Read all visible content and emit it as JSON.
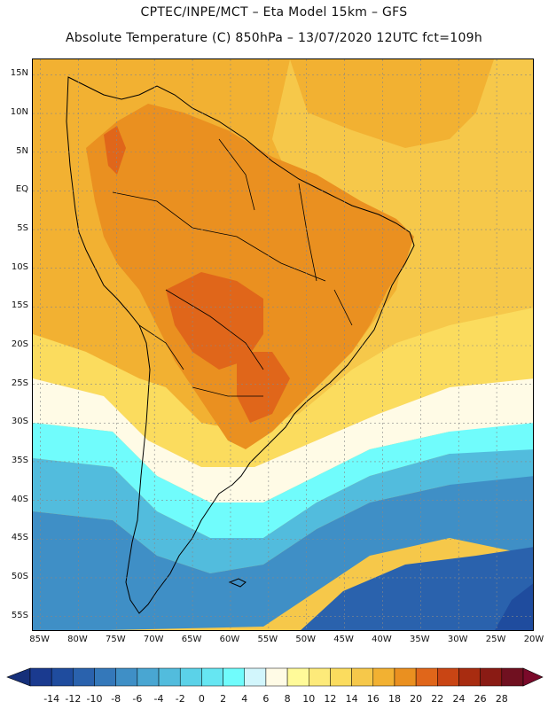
{
  "header": {
    "line1": "CPTEC/INPE/MCT –  Eta Model 15km – GFS",
    "line2": "Absolute Temperature (C) 850hPa – 13/07/2020 12UTC fct=109h"
  },
  "map": {
    "lon_range": [
      -86,
      -20
    ],
    "lat_range": [
      17,
      -57
    ],
    "lat_labels": [
      "15N",
      "10N",
      "5N",
      "EQ",
      "5S",
      "10S",
      "15S",
      "20S",
      "25S",
      "30S",
      "35S",
      "40S",
      "45S",
      "50S",
      "55S"
    ],
    "lat_values": [
      15,
      10,
      5,
      0,
      -5,
      -10,
      -15,
      -20,
      -25,
      -30,
      -35,
      -40,
      -45,
      -50,
      -55
    ],
    "lon_labels": [
      "85W",
      "80W",
      "75W",
      "70W",
      "65W",
      "60W",
      "55W",
      "50W",
      "45W",
      "40W",
      "35W",
      "30W",
      "25W",
      "20W"
    ],
    "lon_values": [
      -85,
      -80,
      -75,
      -70,
      -65,
      -60,
      -55,
      -50,
      -45,
      -40,
      -35,
      -30,
      -25,
      -20
    ]
  },
  "colorbar": {
    "labels": [
      "-14",
      "-12",
      "-10",
      "-8",
      "-6",
      "-4",
      "-2",
      "0",
      "2",
      "4",
      "6",
      "8",
      "10",
      "12",
      "14",
      "16",
      "18",
      "20",
      "22",
      "24",
      "26",
      "28"
    ],
    "colors": [
      "#1a3a8f",
      "#1f4c9e",
      "#2a62ad",
      "#3478ba",
      "#3f8fc6",
      "#49a6d2",
      "#52bcdd",
      "#5bd2e8",
      "#66e6f2",
      "#70fcfc",
      "#d2f6fc",
      "#fffbe6",
      "#fffa99",
      "#fdea7a",
      "#fbdc5e",
      "#f6c84a",
      "#f2b132",
      "#ea9020",
      "#e0661a",
      "#c94514",
      "#a82c10",
      "#8a1b14",
      "#701020"
    ],
    "under_color": "#16307a",
    "over_color": "#7a0a2a"
  },
  "colors": {
    "ocean_tropical": "#f2b132",
    "ocean_warm": "#f6c84a",
    "land_warm": "#ea9020",
    "land_hot": "#e0661a",
    "cold_deep": "#1f4c9e",
    "coastline": "#000000"
  }
}
